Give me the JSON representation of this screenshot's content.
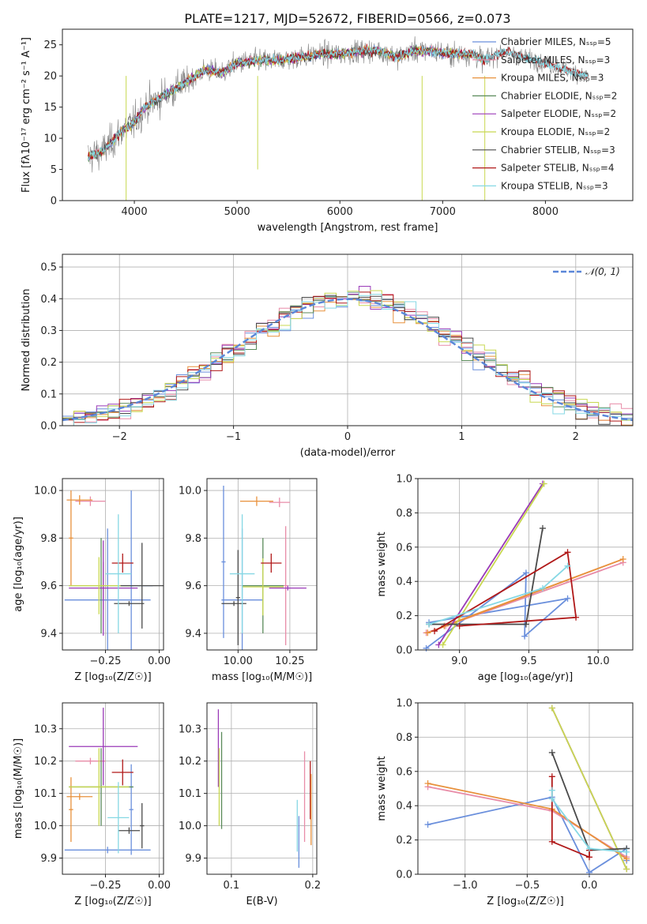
{
  "title": "PLATE=1217, MJD=52672, FIBERID=0566, z=0.073",
  "colors": {
    "Chabrier MILES": "#6a8fdc",
    "Salpeter MILES": "#e88ca8",
    "Kroupa MILES": "#e8913c",
    "Chabrier ELODIE": "#5a8a5a",
    "Salpeter ELODIE": "#9a3ab8",
    "Kroupa ELODIE": "#c8d850",
    "Chabrier STELIB": "#4a4a4a",
    "Salpeter STELIB": "#b01818",
    "Kroupa STELIB": "#86d8e4",
    "gaussian": "#5a86d8",
    "data": "#808080"
  },
  "legend_spectrum": [
    "Chabrier MILES, N_SSP=5",
    "Salpeter MILES, N_SSP=3",
    "Kroupa MILES, N_SSP=3",
    "Chabrier ELODIE, N_SSP=2",
    "Salpeter ELODIE, N_SSP=2",
    "Kroupa ELODIE, N_SSP=2",
    "Chabrier STELIB, N_SSP=3",
    "Salpeter STELIB, N_SSP=4",
    "Kroupa STELIB, N_SSP=3"
  ],
  "legend_hist": "𝒩(0, 1)",
  "chart_data": [
    {
      "type": "line",
      "xlabel": "wavelength [Angstrom, rest frame]",
      "ylabel": "Flux [fλ10⁻¹⁷ erg cm⁻² s⁻¹ A⁻¹]",
      "xlim": [
        3300,
        8850
      ],
      "ylim": [
        0,
        27.5
      ],
      "xticks": [
        "4000",
        "5000",
        "6000",
        "7000",
        "8000"
      ],
      "yticks": [
        "0",
        "5",
        "10",
        "15",
        "20",
        "25"
      ],
      "continuum": {
        "x": [
          3550,
          3700,
          3900,
          4000,
          4100,
          4300,
          4400,
          4500,
          4700,
          4860,
          5000,
          5200,
          5400,
          5600,
          5800,
          6000,
          6200,
          6400,
          6563,
          6700,
          6900,
          7100,
          7300,
          7400,
          7600,
          7800,
          8000,
          8200,
          8420
        ],
        "y": [
          7,
          8,
          11.5,
          12.5,
          15,
          17,
          18,
          19,
          21,
          20.5,
          22,
          22.5,
          22.5,
          23,
          23.5,
          23.5,
          24,
          24,
          23,
          24,
          24,
          23.5,
          23.5,
          22.5,
          24,
          23,
          22,
          21,
          20
        ]
      },
      "series_names": [
        "Chabrier MILES",
        "Salpeter MILES",
        "Kroupa MILES",
        "Chabrier ELODIE",
        "Salpeter ELODIE",
        "Kroupa ELODIE",
        "Chabrier STELIB",
        "Salpeter STELIB",
        "Kroupa STELIB"
      ]
    },
    {
      "type": "line",
      "xlabel": "(data-model)/error",
      "ylabel": "Normed distribution",
      "xlim": [
        -2.5,
        2.5
      ],
      "ylim": [
        0,
        0.54
      ],
      "xticks": [
        "−2",
        "−1",
        "0",
        "1",
        "2"
      ],
      "yticks": [
        "0.0",
        "0.1",
        "0.2",
        "0.3",
        "0.4",
        "0.5"
      ],
      "gaussian": "𝒩(0,1) density, dashed"
    },
    {
      "type": "scatter",
      "xlabel": "Z [log₁₀(Z/Z☉)]",
      "ylabel": "age  [log₁₀(age/yr)]",
      "xlim": [
        -0.45,
        0.02
      ],
      "ylim": [
        9.33,
        10.05
      ],
      "xticks": [
        "−0.25",
        "0.00"
      ],
      "yticks": [
        "9.4",
        "9.6",
        "9.8",
        "10.0"
      ],
      "points": [
        {
          "series": "Chabrier MILES",
          "x": -0.24,
          "y": 9.54,
          "xerr": 0.2,
          "yerr": 0.3
        },
        {
          "series": "Chabrier MILES",
          "x": -0.13,
          "y": 9.6,
          "xerr": 0.1,
          "yerr": 0.4
        },
        {
          "series": "Salpeter MILES",
          "x": -0.32,
          "y": 9.955,
          "xerr": 0.07,
          "yerr": 0.02
        },
        {
          "series": "Salpeter MILES",
          "x": -0.26,
          "y": 9.6,
          "xerr": 0.02,
          "yerr": 0.1
        },
        {
          "series": "Kroupa MILES",
          "x": -0.37,
          "y": 9.96,
          "xerr": 0.06,
          "yerr": 0.02
        },
        {
          "series": "Kroupa MILES",
          "x": -0.41,
          "y": 9.8,
          "xerr": 0.01,
          "yerr": 0.2
        },
        {
          "series": "Chabrier ELODIE",
          "x": -0.27,
          "y": 9.6,
          "xerr": 0.15,
          "yerr": 0.2
        },
        {
          "series": "Salpeter ELODIE",
          "x": -0.26,
          "y": 9.59,
          "xerr": 0.16,
          "yerr": 0.2
        },
        {
          "series": "Kroupa ELODIE",
          "x": -0.28,
          "y": 9.6,
          "xerr": 0.14,
          "yerr": 0.12
        },
        {
          "series": "Chabrier STELIB",
          "x": -0.08,
          "y": 9.6,
          "xerr": 0.1,
          "yerr": 0.18
        },
        {
          "series": "Chabrier STELIB",
          "x": -0.14,
          "y": 9.525,
          "xerr": 0.07,
          "yerr": 0.01
        },
        {
          "series": "Salpeter STELIB",
          "x": -0.17,
          "y": 9.695,
          "xerr": 0.05,
          "yerr": 0.04
        },
        {
          "series": "Kroupa STELIB",
          "x": -0.19,
          "y": 9.65,
          "xerr": 0.06,
          "yerr": 0.25
        }
      ]
    },
    {
      "type": "scatter",
      "xlabel": "mass [log₁₀(M/M☉)]",
      "ylabel": "",
      "xlim": [
        9.85,
        10.38
      ],
      "ylim": [
        9.33,
        10.05
      ],
      "xticks": [
        "10.00",
        "10.25"
      ],
      "yticks": [
        "9.4",
        "9.6",
        "9.8",
        "10.0"
      ],
      "points": [
        {
          "series": "Chabrier MILES",
          "x": 10.02,
          "y": 9.54,
          "xerr": 0.1,
          "yerr": 0.3
        },
        {
          "series": "Chabrier MILES",
          "x": 9.93,
          "y": 9.7,
          "xerr": 0.01,
          "yerr": 0.32
        },
        {
          "series": "Salpeter MILES",
          "x": 10.2,
          "y": 9.95,
          "xerr": 0.05,
          "yerr": 0.02
        },
        {
          "series": "Salpeter MILES",
          "x": 10.23,
          "y": 9.6,
          "xerr": 0.01,
          "yerr": 0.25
        },
        {
          "series": "Kroupa MILES",
          "x": 10.09,
          "y": 9.955,
          "xerr": 0.08,
          "yerr": 0.02
        },
        {
          "series": "Chabrier ELODIE",
          "x": 10.12,
          "y": 9.6,
          "xerr": 0.1,
          "yerr": 0.2
        },
        {
          "series": "Salpeter ELODIE",
          "x": 10.24,
          "y": 9.59,
          "xerr": 0.09,
          "yerr": 0.01
        },
        {
          "series": "Kroupa ELODIE",
          "x": 10.12,
          "y": 9.595,
          "xerr": 0.1,
          "yerr": 0.12
        },
        {
          "series": "Chabrier STELIB",
          "x": 9.98,
          "y": 9.525,
          "xerr": 0.06,
          "yerr": 0.01
        },
        {
          "series": "Chabrier STELIB",
          "x": 10.0,
          "y": 9.55,
          "xerr": 0.01,
          "yerr": 0.2
        },
        {
          "series": "Salpeter STELIB",
          "x": 10.16,
          "y": 9.695,
          "xerr": 0.05,
          "yerr": 0.04
        },
        {
          "series": "Kroupa STELIB",
          "x": 10.02,
          "y": 9.65,
          "xerr": 0.06,
          "yerr": 0.25
        }
      ]
    },
    {
      "type": "line",
      "xlabel": "age  [log₁₀(age/yr)]",
      "ylabel": "mass weight",
      "xlim": [
        8.7,
        10.25
      ],
      "ylim": [
        0.0,
        1.0
      ],
      "xticks": [
        "9.0",
        "9.5",
        "10.0"
      ],
      "yticks": [
        "0.0",
        "0.2",
        "0.4",
        "0.6",
        "0.8",
        "1.0"
      ],
      "series": [
        {
          "name": "Chabrier MILES",
          "x": [
            8.76,
            9.48,
            9.47,
            9.78,
            8.78
          ],
          "y": [
            0.01,
            0.45,
            0.08,
            0.3,
            0.16
          ]
        },
        {
          "name": "Salpeter MILES",
          "x": [
            8.9,
            10.18,
            8.76
          ],
          "y": [
            0.14,
            0.51,
            0.1
          ]
        },
        {
          "name": "Kroupa MILES",
          "x": [
            8.77,
            10.18,
            8.89
          ],
          "y": [
            0.1,
            0.53,
            0.14
          ]
        },
        {
          "name": "Salpeter ELODIE",
          "x": [
            8.85,
            9.6
          ],
          "y": [
            0.03,
            0.97
          ]
        },
        {
          "name": "Kroupa ELODIE",
          "x": [
            8.88,
            9.61
          ],
          "y": [
            0.03,
            0.97
          ]
        },
        {
          "name": "Chabrier STELIB",
          "x": [
            9.6,
            9.48,
            8.78
          ],
          "y": [
            0.71,
            0.15,
            0.15
          ]
        },
        {
          "name": "Salpeter STELIB",
          "x": [
            8.82,
            9.78,
            9.84,
            9.0
          ],
          "y": [
            0.11,
            0.57,
            0.19,
            0.14
          ]
        },
        {
          "name": "Kroupa STELIB",
          "x": [
            8.78,
            9.6,
            9.78
          ],
          "y": [
            0.15,
            0.36,
            0.49
          ]
        }
      ]
    },
    {
      "type": "scatter",
      "xlabel": "Z [log₁₀(Z/Z☉)]",
      "ylabel": "mass [log₁₀(M/M☉)]",
      "xlim": [
        -0.45,
        0.02
      ],
      "ylim": [
        9.85,
        10.38
      ],
      "xticks": [
        "−0.25",
        "0.00"
      ],
      "yticks": [
        "9.9",
        "10.0",
        "10.1",
        "10.2",
        "10.3"
      ],
      "points": [
        {
          "series": "Chabrier MILES",
          "x": -0.24,
          "y": 9.925,
          "xerr": 0.2,
          "yerr": 0.01
        },
        {
          "series": "Chabrier MILES",
          "x": -0.13,
          "y": 10.05,
          "xerr": 0.01,
          "yerr": 0.14
        },
        {
          "series": "Salpeter MILES",
          "x": -0.32,
          "y": 10.2,
          "xerr": 0.07,
          "yerr": 0.01
        },
        {
          "series": "Kroupa MILES",
          "x": -0.37,
          "y": 10.09,
          "xerr": 0.06,
          "yerr": 0.01
        },
        {
          "series": "Kroupa MILES",
          "x": -0.41,
          "y": 10.05,
          "xerr": 0.01,
          "yerr": 0.1
        },
        {
          "series": "Chabrier ELODIE",
          "x": -0.27,
          "y": 10.12,
          "xerr": 0.15,
          "yerr": 0.12
        },
        {
          "series": "Salpeter ELODIE",
          "x": -0.26,
          "y": 10.245,
          "xerr": 0.16,
          "yerr": 0.12
        },
        {
          "series": "Kroupa ELODIE",
          "x": -0.28,
          "y": 10.12,
          "xerr": 0.14,
          "yerr": 0.12
        },
        {
          "series": "Chabrier STELIB",
          "x": -0.14,
          "y": 9.985,
          "xerr": 0.05,
          "yerr": 0.01
        },
        {
          "series": "Chabrier STELIB",
          "x": -0.08,
          "y": 10.0,
          "xerr": 0.01,
          "yerr": 0.07
        },
        {
          "series": "Salpeter STELIB",
          "x": -0.17,
          "y": 10.165,
          "xerr": 0.05,
          "yerr": 0.04
        },
        {
          "series": "Kroupa STELIB",
          "x": -0.19,
          "y": 10.025,
          "xerr": 0.05,
          "yerr": 0.11
        }
      ]
    },
    {
      "type": "scatter",
      "xlabel": "E(B-V)",
      "ylabel": "",
      "xlim": [
        0.07,
        0.205
      ],
      "ylim": [
        9.85,
        10.38
      ],
      "xticks": [
        "0.1",
        "0.2"
      ],
      "yticks": [
        "9.9",
        "10.0",
        "10.1",
        "10.2",
        "10.3"
      ],
      "points": [
        {
          "series": "Salpeter ELODIE",
          "x": 0.084,
          "y": 10.24,
          "xerr": 0,
          "yerr": 0.12
        },
        {
          "series": "Kroupa ELODIE",
          "x": 0.085,
          "y": 10.12,
          "xerr": 0,
          "yerr": 0.12
        },
        {
          "series": "Chabrier ELODIE",
          "x": 0.088,
          "y": 10.14,
          "xerr": 0,
          "yerr": 0.15
        },
        {
          "series": "Kroupa STELIB",
          "x": 0.181,
          "y": 10.0,
          "xerr": 0,
          "yerr": 0.08
        },
        {
          "series": "Chabrier MILES",
          "x": 0.183,
          "y": 9.95,
          "xerr": 0,
          "yerr": 0.08
        },
        {
          "series": "Salpeter MILES",
          "x": 0.19,
          "y": 10.09,
          "xerr": 0,
          "yerr": 0.14
        },
        {
          "series": "Salpeter STELIB",
          "x": 0.197,
          "y": 10.11,
          "xerr": 0,
          "yerr": 0.09
        },
        {
          "series": "Kroupa MILES",
          "x": 0.198,
          "y": 10.05,
          "xerr": 0,
          "yerr": 0.11
        }
      ]
    },
    {
      "type": "line",
      "xlabel": "Z [log₁₀(Z/Z☉)]",
      "ylabel": "mass weight",
      "xlim": [
        -1.38,
        0.35
      ],
      "ylim": [
        0.0,
        1.0
      ],
      "xticks": [
        "−1.0",
        "−0.5",
        "0.0"
      ],
      "yticks": [
        "0.0",
        "0.2",
        "0.4",
        "0.6",
        "0.8",
        "1.0"
      ],
      "series": [
        {
          "name": "Chabrier MILES",
          "x": [
            -1.3,
            -0.3,
            0.0,
            0.3,
            0.3
          ],
          "y": [
            0.29,
            0.45,
            0.01,
            0.15,
            0.08
          ]
        },
        {
          "name": "Salpeter MILES",
          "x": [
            -1.3,
            -0.3,
            0.3
          ],
          "y": [
            0.51,
            0.37,
            0.1
          ]
        },
        {
          "name": "Kroupa MILES",
          "x": [
            -1.3,
            -0.3,
            0.3
          ],
          "y": [
            0.53,
            0.38,
            0.09
          ]
        },
        {
          "name": "Salpeter ELODIE",
          "x": [
            -0.3,
            0.3
          ],
          "y": [
            0.97,
            0.03
          ]
        },
        {
          "name": "Kroupa ELODIE",
          "x": [
            -0.3,
            0.3
          ],
          "y": [
            0.97,
            0.03
          ]
        },
        {
          "name": "Chabrier STELIB",
          "x": [
            -0.3,
            0.0,
            0.3
          ],
          "y": [
            0.71,
            0.14,
            0.15
          ]
        },
        {
          "name": "Salpeter STELIB",
          "x": [
            -0.3,
            -0.3,
            0.0,
            0.0
          ],
          "y": [
            0.57,
            0.19,
            0.1,
            0.14
          ]
        },
        {
          "name": "Kroupa STELIB",
          "x": [
            -0.3,
            -0.3,
            0.0,
            0.3
          ],
          "y": [
            0.49,
            0.44,
            0.15,
            0.13
          ]
        }
      ]
    }
  ]
}
